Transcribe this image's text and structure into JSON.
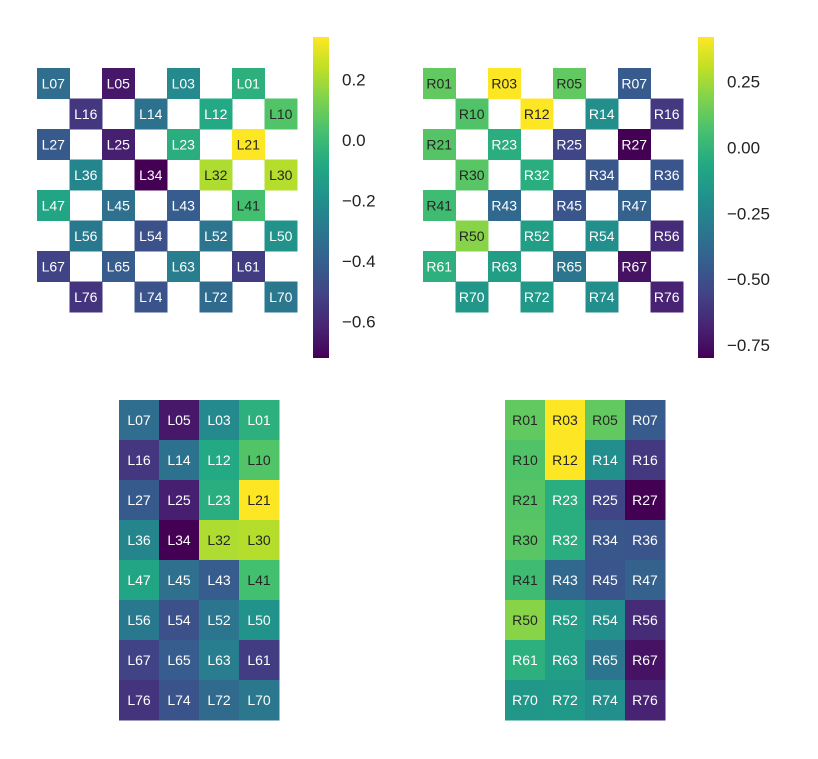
{
  "colors": {
    "colormap": "viridis",
    "viridis_stops": [
      "#440154",
      "#482475",
      "#414487",
      "#355f8d",
      "#2a788e",
      "#21918c",
      "#22a884",
      "#44bf70",
      "#7ad151",
      "#bddf26",
      "#fde725"
    ],
    "text_light": "#ffffff",
    "text_dark": "#262626"
  },
  "chart_data": [
    {
      "type": "heatmap",
      "name": "left-checkerboard",
      "layout": "checkerboard",
      "grid": false,
      "legend": "colorbar-right",
      "vmin": -0.72,
      "vmax": 0.34,
      "colorbar_ticks": [
        0.2,
        0.0,
        -0.2,
        -0.4,
        -0.6
      ],
      "colorbar_tick_labels": [
        "0.2",
        "0.0",
        "−0.2",
        "−0.4",
        "−0.6"
      ],
      "rows": [
        [
          {
            "label": "L07",
            "value": -0.34
          },
          {
            "label": "L05",
            "value": -0.65
          },
          {
            "label": "L03",
            "value": -0.22
          },
          {
            "label": "L01",
            "value": -0.05
          }
        ],
        [
          {
            "label": "L16",
            "value": -0.55
          },
          {
            "label": "L14",
            "value": -0.32
          },
          {
            "label": "L12",
            "value": -0.08
          },
          {
            "label": "L10",
            "value": 0.05
          }
        ],
        [
          {
            "label": "L27",
            "value": -0.42
          },
          {
            "label": "L25",
            "value": -0.63
          },
          {
            "label": "L23",
            "value": -0.06
          },
          {
            "label": "L21",
            "value": 0.34
          }
        ],
        [
          {
            "label": "L36",
            "value": -0.24
          },
          {
            "label": "L34",
            "value": -0.72
          },
          {
            "label": "L32",
            "value": 0.21
          },
          {
            "label": "L30",
            "value": 0.22
          }
        ],
        [
          {
            "label": "L47",
            "value": -0.1
          },
          {
            "label": "L45",
            "value": -0.33
          },
          {
            "label": "L43",
            "value": -0.41
          },
          {
            "label": "L41",
            "value": 0.02
          }
        ],
        [
          {
            "label": "L56",
            "value": -0.29
          },
          {
            "label": "L54",
            "value": -0.46
          },
          {
            "label": "L52",
            "value": -0.31
          },
          {
            "label": "L50",
            "value": -0.18
          }
        ],
        [
          {
            "label": "L67",
            "value": -0.51
          },
          {
            "label": "L65",
            "value": -0.41
          },
          {
            "label": "L63",
            "value": -0.27
          },
          {
            "label": "L61",
            "value": -0.53
          }
        ],
        [
          {
            "label": "L76",
            "value": -0.56
          },
          {
            "label": "L74",
            "value": -0.45
          },
          {
            "label": "L72",
            "value": -0.35
          },
          {
            "label": "L70",
            "value": -0.3
          }
        ]
      ]
    },
    {
      "type": "heatmap",
      "name": "right-checkerboard",
      "layout": "checkerboard",
      "grid": false,
      "legend": "colorbar-right",
      "vmin": -0.8,
      "vmax": 0.42,
      "colorbar_ticks": [
        0.25,
        0.0,
        -0.25,
        -0.5,
        -0.75
      ],
      "colorbar_tick_labels": [
        "0.25",
        "0.00",
        "−0.25",
        "−0.50",
        "−0.75"
      ],
      "rows": [
        [
          {
            "label": "R01",
            "value": 0.12
          },
          {
            "label": "R03",
            "value": 0.42
          },
          {
            "label": "R05",
            "value": 0.12
          },
          {
            "label": "R07",
            "value": -0.45
          }
        ],
        [
          {
            "label": "R10",
            "value": 0.08
          },
          {
            "label": "R12",
            "value": 0.42
          },
          {
            "label": "R14",
            "value": -0.2
          },
          {
            "label": "R16",
            "value": -0.6
          }
        ],
        [
          {
            "label": "R21",
            "value": 0.09
          },
          {
            "label": "R23",
            "value": -0.04
          },
          {
            "label": "R25",
            "value": -0.55
          },
          {
            "label": "R27",
            "value": -0.8
          }
        ],
        [
          {
            "label": "R30",
            "value": 0.1
          },
          {
            "label": "R32",
            "value": -0.04
          },
          {
            "label": "R34",
            "value": -0.47
          },
          {
            "label": "R36",
            "value": -0.48
          }
        ],
        [
          {
            "label": "R41",
            "value": 0.04
          },
          {
            "label": "R43",
            "value": -0.39
          },
          {
            "label": "R45",
            "value": -0.48
          },
          {
            "label": "R47",
            "value": -0.42
          }
        ],
        [
          {
            "label": "R50",
            "value": 0.2
          },
          {
            "label": "R52",
            "value": -0.12
          },
          {
            "label": "R54",
            "value": -0.2
          },
          {
            "label": "R56",
            "value": -0.65
          }
        ],
        [
          {
            "label": "R61",
            "value": -0.03
          },
          {
            "label": "R63",
            "value": -0.12
          },
          {
            "label": "R65",
            "value": -0.32
          },
          {
            "label": "R67",
            "value": -0.74
          }
        ],
        [
          {
            "label": "R70",
            "value": -0.16
          },
          {
            "label": "R72",
            "value": -0.15
          },
          {
            "label": "R74",
            "value": -0.2
          },
          {
            "label": "R76",
            "value": -0.68
          }
        ]
      ]
    },
    {
      "type": "heatmap",
      "name": "left-compact",
      "layout": "compact",
      "grid": false,
      "legend": "none",
      "uses_scale_of": 0,
      "rows": [
        [
          {
            "label": "L07",
            "value": -0.34
          },
          {
            "label": "L05",
            "value": -0.65
          },
          {
            "label": "L03",
            "value": -0.22
          },
          {
            "label": "L01",
            "value": -0.05
          }
        ],
        [
          {
            "label": "L16",
            "value": -0.55
          },
          {
            "label": "L14",
            "value": -0.32
          },
          {
            "label": "L12",
            "value": -0.08
          },
          {
            "label": "L10",
            "value": 0.05
          }
        ],
        [
          {
            "label": "L27",
            "value": -0.42
          },
          {
            "label": "L25",
            "value": -0.63
          },
          {
            "label": "L23",
            "value": -0.06
          },
          {
            "label": "L21",
            "value": 0.34
          }
        ],
        [
          {
            "label": "L36",
            "value": -0.24
          },
          {
            "label": "L34",
            "value": -0.72
          },
          {
            "label": "L32",
            "value": 0.21
          },
          {
            "label": "L30",
            "value": 0.22
          }
        ],
        [
          {
            "label": "L47",
            "value": -0.1
          },
          {
            "label": "L45",
            "value": -0.33
          },
          {
            "label": "L43",
            "value": -0.41
          },
          {
            "label": "L41",
            "value": 0.02
          }
        ],
        [
          {
            "label": "L56",
            "value": -0.29
          },
          {
            "label": "L54",
            "value": -0.46
          },
          {
            "label": "L52",
            "value": -0.31
          },
          {
            "label": "L50",
            "value": -0.18
          }
        ],
        [
          {
            "label": "L67",
            "value": -0.51
          },
          {
            "label": "L65",
            "value": -0.41
          },
          {
            "label": "L63",
            "value": -0.27
          },
          {
            "label": "L61",
            "value": -0.53
          }
        ],
        [
          {
            "label": "L76",
            "value": -0.56
          },
          {
            "label": "L74",
            "value": -0.45
          },
          {
            "label": "L72",
            "value": -0.35
          },
          {
            "label": "L70",
            "value": -0.3
          }
        ]
      ]
    },
    {
      "type": "heatmap",
      "name": "right-compact",
      "layout": "compact",
      "grid": false,
      "legend": "none",
      "uses_scale_of": 1,
      "rows": [
        [
          {
            "label": "R01",
            "value": 0.12
          },
          {
            "label": "R03",
            "value": 0.42
          },
          {
            "label": "R05",
            "value": 0.12
          },
          {
            "label": "R07",
            "value": -0.45
          }
        ],
        [
          {
            "label": "R10",
            "value": 0.08
          },
          {
            "label": "R12",
            "value": 0.42
          },
          {
            "label": "R14",
            "value": -0.2
          },
          {
            "label": "R16",
            "value": -0.6
          }
        ],
        [
          {
            "label": "R21",
            "value": 0.09
          },
          {
            "label": "R23",
            "value": -0.04
          },
          {
            "label": "R25",
            "value": -0.55
          },
          {
            "label": "R27",
            "value": -0.8
          }
        ],
        [
          {
            "label": "R30",
            "value": 0.1
          },
          {
            "label": "R32",
            "value": -0.04
          },
          {
            "label": "R34",
            "value": -0.47
          },
          {
            "label": "R36",
            "value": -0.48
          }
        ],
        [
          {
            "label": "R41",
            "value": 0.04
          },
          {
            "label": "R43",
            "value": -0.39
          },
          {
            "label": "R45",
            "value": -0.48
          },
          {
            "label": "R47",
            "value": -0.42
          }
        ],
        [
          {
            "label": "R50",
            "value": 0.2
          },
          {
            "label": "R52",
            "value": -0.12
          },
          {
            "label": "R54",
            "value": -0.2
          },
          {
            "label": "R56",
            "value": -0.65
          }
        ],
        [
          {
            "label": "R61",
            "value": -0.03
          },
          {
            "label": "R63",
            "value": -0.12
          },
          {
            "label": "R65",
            "value": -0.32
          },
          {
            "label": "R67",
            "value": -0.74
          }
        ],
        [
          {
            "label": "R70",
            "value": -0.16
          },
          {
            "label": "R72",
            "value": -0.15
          },
          {
            "label": "R74",
            "value": -0.2
          },
          {
            "label": "R76",
            "value": -0.68
          }
        ]
      ]
    }
  ]
}
